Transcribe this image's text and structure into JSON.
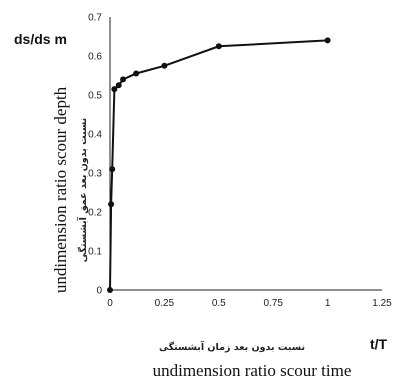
{
  "chart_data": {
    "type": "line",
    "x": [
      0,
      0.005,
      0.01,
      0.02,
      0.04,
      0.06,
      0.12,
      0.25,
      0.5,
      1.0
    ],
    "series": [
      {
        "values": [
          0,
          0.22,
          0.31,
          0.515,
          0.525,
          0.54,
          0.555,
          0.575,
          0.625,
          0.64
        ],
        "color": "#111111"
      }
    ],
    "xlim": [
      0,
      1.25
    ],
    "ylim": [
      0,
      0.7
    ],
    "x_ticks": [
      "0",
      "0.25",
      "0.5",
      "0.75",
      "1",
      "1.25"
    ],
    "y_ticks": [
      "0",
      "0.1",
      "0.2",
      "0.3",
      "0.4",
      "0.5",
      "0.6",
      "0.7"
    ],
    "x_tick_values": [
      0,
      0.25,
      0.5,
      0.75,
      1,
      1.25
    ],
    "y_tick_values": [
      0,
      0.1,
      0.2,
      0.3,
      0.4,
      0.5,
      0.6,
      0.7
    ],
    "y_symbol": "ds/ds m",
    "x_symbol": "t/T",
    "ylabel_fa": "نسبت بدون بعد عمق آبشستگی",
    "xlabel_fa": "نسبت بدون بعد زمان آبشستگی",
    "ylabel_en": "undimension ratio scour depth",
    "xlabel_en": "undimension ratio scour time",
    "grid": false,
    "legend": "none"
  }
}
